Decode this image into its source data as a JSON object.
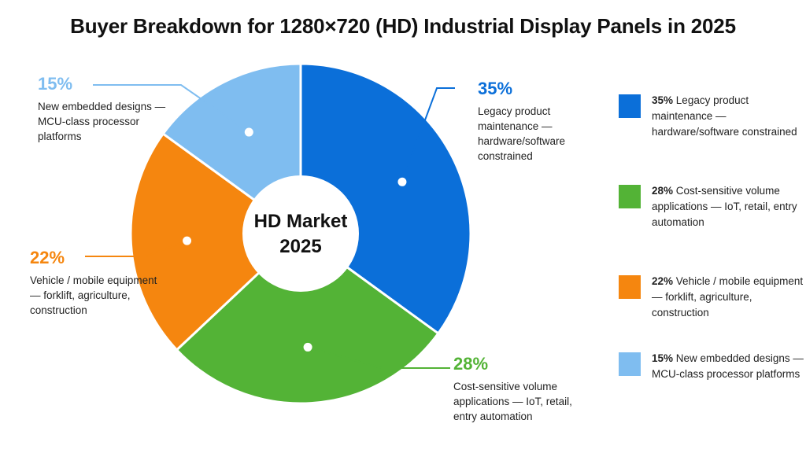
{
  "title": "Buyer Breakdown for 1280×720 (HD) Industrial Display Panels in 2025",
  "center_label": [
    "HD Market",
    "2025"
  ],
  "colors": {
    "legacy": "#0b6fd9",
    "cost": "#53b336",
    "vehicle": "#f5860f",
    "embedded": "#7fbdf0"
  },
  "chart_data": {
    "type": "pie",
    "title": "Buyer Breakdown for 1280×720 (HD) Industrial Display Panels in 2025",
    "center_label": "HD Market 2025",
    "legend_placement": "right",
    "slices": [
      {
        "key": "legacy",
        "pct_label": "35%",
        "value": 35,
        "label": "Legacy product maintenance — hardware/software constrained"
      },
      {
        "key": "cost",
        "pct_label": "28%",
        "value": 28,
        "label": "Cost-sensitive volume applications — IoT, retail, entry automation"
      },
      {
        "key": "vehicle",
        "pct_label": "22%",
        "value": 22,
        "label": "Vehicle / mobile equipment — forklift, agriculture, construction"
      },
      {
        "key": "embedded",
        "pct_label": "15%",
        "value": 15,
        "label": "New embedded designs — MCU-class processor platforms"
      }
    ]
  }
}
